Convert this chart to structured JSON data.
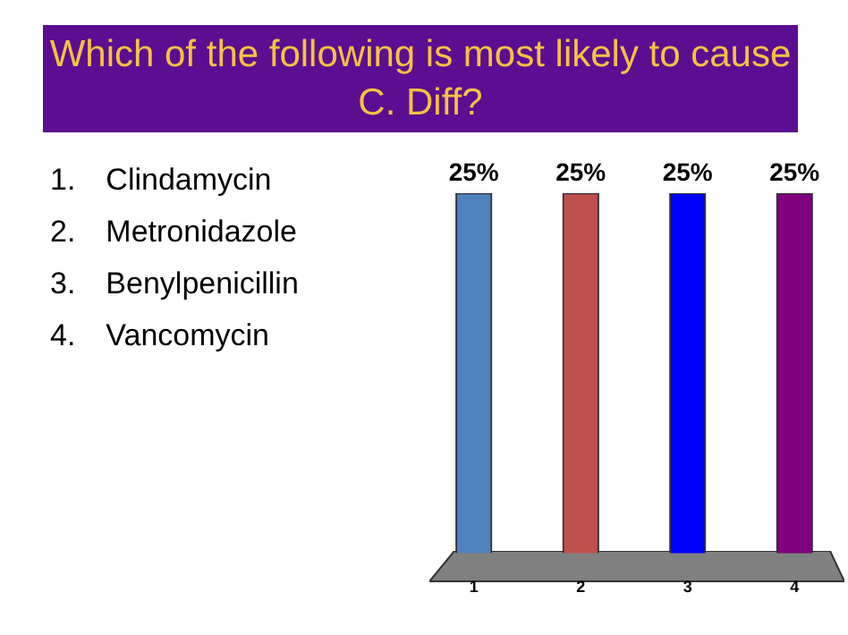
{
  "chart_data": {
    "type": "bar",
    "title": "Which of the following is most likely to cause C. Diff?",
    "categories": [
      "1",
      "2",
      "3",
      "4"
    ],
    "values": [
      25,
      25,
      25,
      25
    ],
    "value_labels": [
      "25%",
      "25%",
      "25%",
      "25%"
    ],
    "colors": [
      "#4f81bd",
      "#c0504d",
      "#0000ff",
      "#800080"
    ],
    "annotations": [
      "1. Clindamycin",
      "2. Metronidazole",
      "3. Benylpenicillin",
      "4. Vancomycin"
    ],
    "grid": false,
    "legend": false
  }
}
